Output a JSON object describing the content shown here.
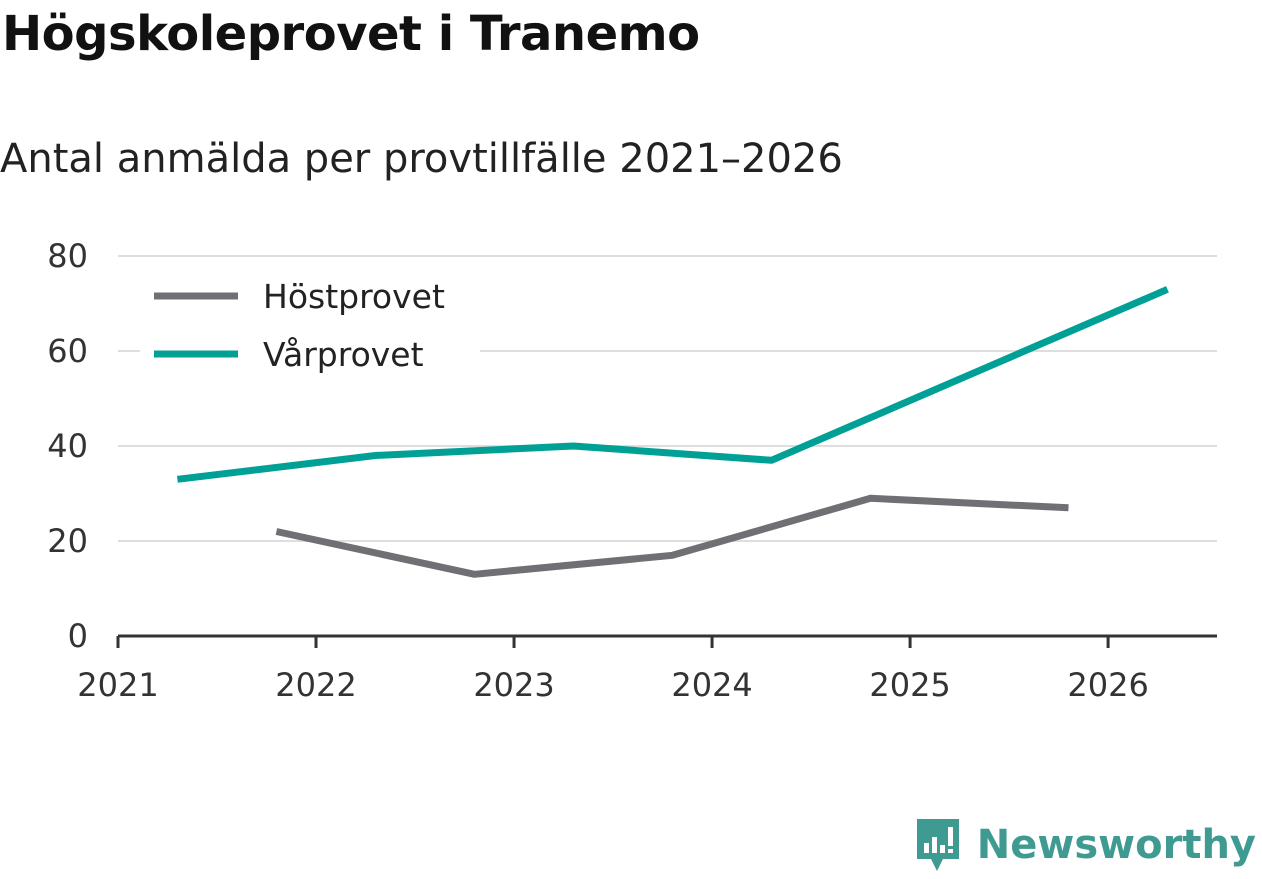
{
  "chart_data": {
    "type": "line",
    "title": "Högskoleprovet i Tranemo",
    "subtitle": "Antal anmälda per provtillfälle 2021–2026",
    "xlabel": "",
    "ylabel": "",
    "xlim": [
      2021,
      2026.55
    ],
    "ylim": [
      0,
      80
    ],
    "x_ticks": [
      "2021",
      "2022",
      "2023",
      "2024",
      "2025",
      "2026"
    ],
    "y_ticks": [
      "0",
      "20",
      "40",
      "60",
      "80"
    ],
    "grid": true,
    "legend_position": "top-left",
    "series": [
      {
        "name": "Höstprovet",
        "color": "#707074",
        "x": [
          2021.8,
          2022.8,
          2023.8,
          2024.8,
          2025.8
        ],
        "values": [
          22,
          13,
          17,
          29,
          27
        ]
      },
      {
        "name": "Vårprovet",
        "color": "#00a096",
        "x": [
          2021.3,
          2022.3,
          2023.3,
          2024.3,
          2025.3,
          2026.3
        ],
        "values": [
          33,
          38,
          40,
          37,
          55,
          73
        ]
      }
    ]
  },
  "branding": {
    "name": "Newsworthy",
    "icon": "newsworthy-bar-chart-icon",
    "color": "#3f9a92"
  }
}
